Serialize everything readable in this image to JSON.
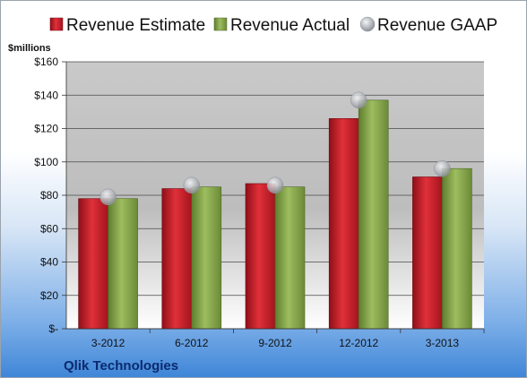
{
  "company": "Qlik Technologies",
  "chart_data": {
    "type": "bar",
    "unit_label": "$millions",
    "categories": [
      "3-2012",
      "6-2012",
      "9-2012",
      "12-2012",
      "3-2013"
    ],
    "y_ticks": [
      "$-",
      "$20",
      "$40",
      "$60",
      "$80",
      "$100",
      "$120",
      "$140",
      "$160"
    ],
    "ylim": [
      0,
      160
    ],
    "grid": true,
    "legend_position": "top",
    "series": [
      {
        "name": "Revenue Estimate",
        "kind": "bar",
        "color": "#cc1f2b",
        "values": [
          78,
          84,
          87,
          126,
          91
        ]
      },
      {
        "name": "Revenue Actual",
        "kind": "bar",
        "color": "#8aab4f",
        "values": [
          78,
          85,
          85,
          137,
          96
        ]
      },
      {
        "name": "Revenue GAAP",
        "kind": "marker",
        "color": "#b9bcc2",
        "values": [
          79,
          86,
          86,
          137,
          96
        ]
      }
    ]
  }
}
